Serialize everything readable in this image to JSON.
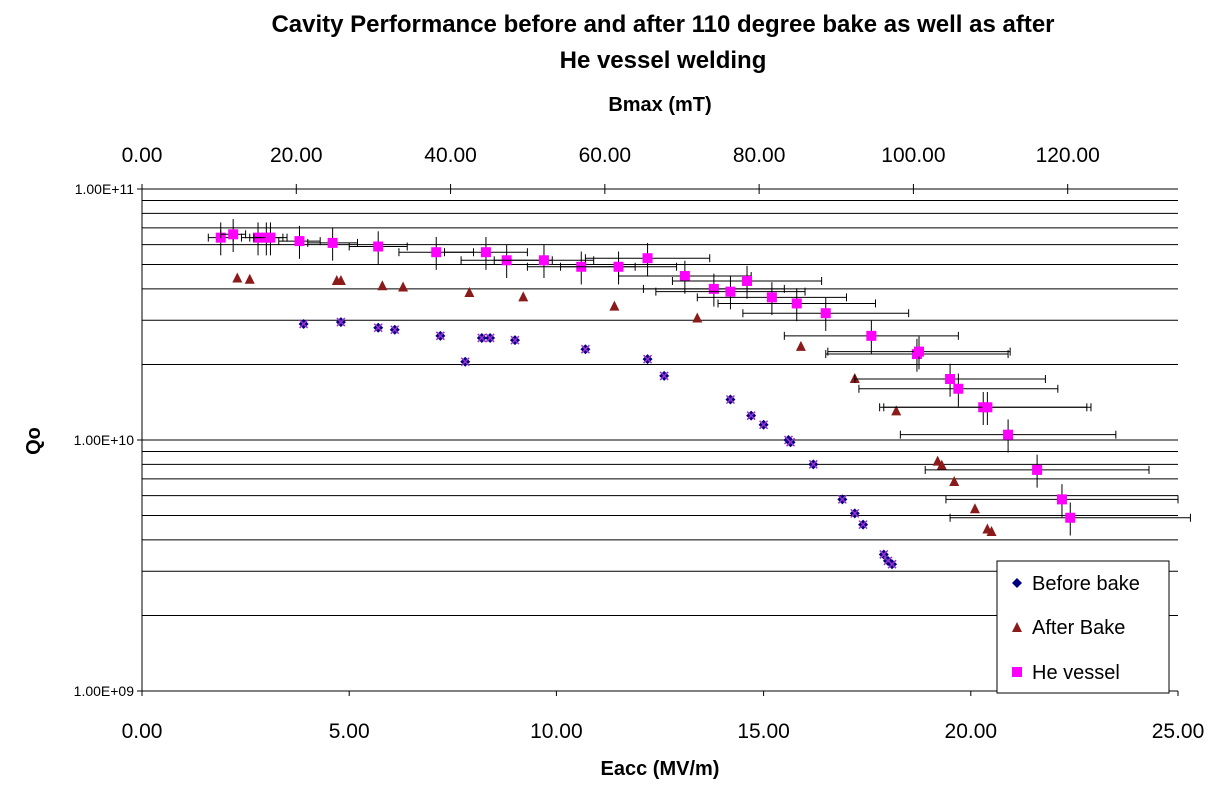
{
  "chart_data": {
    "type": "scatter",
    "title": "Cavity Performance before and after 110 degree bake as well as after He vessel welding",
    "title_lines": [
      "Cavity Performance before and after 110 degree bake as well as after",
      "He vessel welding"
    ],
    "xlabel": "Eacc (MV/m)",
    "x2label": "Bmax (mT)",
    "ylabel": "Qo",
    "xlim": [
      0,
      25
    ],
    "x2lim": [
      0,
      134.3
    ],
    "ylim": [
      1000000000.0,
      100000000000.0
    ],
    "yscale": "log",
    "x_ticks": [
      "0.00",
      "5.00",
      "10.00",
      "15.00",
      "20.00",
      "25.00"
    ],
    "x2_ticks": [
      "0.00",
      "20.00",
      "40.00",
      "60.00",
      "80.00",
      "100.00",
      "120.00"
    ],
    "y_tick_labels": [
      "1.00E+09",
      "1.00E+10",
      "1.00E+11"
    ],
    "grid": "horizontal",
    "legend_position": "bottom-right",
    "series": [
      {
        "name": "Before bake",
        "color": "#000080",
        "marker": "diamond",
        "x": [
          3.9,
          4.8,
          5.7,
          6.1,
          7.2,
          7.8,
          8.2,
          8.4,
          9.0,
          10.7,
          12.2,
          12.6,
          14.2,
          14.7,
          15.0,
          15.6,
          15.65,
          16.2,
          16.9,
          17.2,
          17.4,
          17.9,
          18.0,
          18.1
        ],
        "y": [
          29000000000.0,
          29500000000.0,
          28000000000.0,
          27500000000.0,
          26000000000.0,
          20500000000.0,
          25500000000.0,
          25500000000.0,
          25000000000.0,
          23000000000.0,
          21000000000.0,
          18000000000.0,
          14500000000.0,
          12500000000.0,
          11500000000.0,
          10000000000.0,
          9800000000.0,
          8000000000.0,
          5800000000.0,
          5100000000.0,
          4600000000.0,
          3500000000.0,
          3300000000.0,
          3200000000.0
        ]
      },
      {
        "name": "After Bake",
        "color": "#8B1A1A",
        "marker": "triangle",
        "x": [
          2.3,
          2.6,
          4.7,
          4.8,
          5.8,
          6.3,
          7.9,
          9.2,
          11.4,
          13.4,
          15.9,
          17.2,
          18.2,
          19.2,
          19.3,
          19.6,
          20.1,
          20.4,
          20.5
        ],
        "y": [
          44000000000.0,
          43500000000.0,
          43000000000.0,
          43000000000.0,
          41000000000.0,
          40500000000.0,
          38500000000.0,
          37000000000.0,
          34000000000.0,
          30500000000.0,
          23500000000.0,
          17500000000.0,
          13000000000.0,
          8200000000.0,
          7900000000.0,
          6800000000.0,
          5300000000.0,
          4400000000.0,
          4300000000.0
        ]
      },
      {
        "name": "He vessel",
        "color": "#FF00FF",
        "marker": "square",
        "x": [
          1.9,
          2.2,
          2.8,
          3.0,
          3.1,
          3.8,
          4.6,
          5.7,
          7.1,
          8.3,
          8.8,
          9.7,
          10.6,
          11.5,
          12.2,
          13.1,
          13.8,
          14.2,
          14.6,
          15.2,
          15.8,
          16.5,
          17.6,
          18.7,
          18.75,
          19.5,
          19.7,
          20.3,
          20.4,
          20.9,
          21.6,
          22.2,
          22.4
        ],
        "y": [
          64000000000.0,
          66000000000.0,
          64000000000.0,
          64000000000.0,
          64000000000.0,
          62000000000.0,
          61000000000.0,
          59000000000.0,
          56000000000.0,
          56000000000.0,
          52000000000.0,
          52000000000.0,
          49000000000.0,
          49000000000.0,
          53000000000.0,
          45000000000.0,
          40000000000.0,
          39000000000.0,
          43000000000.0,
          37000000000.0,
          35000000000.0,
          32000000000.0,
          26000000000.0,
          22000000000.0,
          22500000000.0,
          17500000000.0,
          16000000000.0,
          13500000000.0,
          13500000000.0,
          10500000000.0,
          7600000000.0,
          5800000000.0,
          4900000000.0
        ],
        "x_err": [
          0.3,
          0.3,
          0.4,
          0.4,
          0.4,
          0.5,
          0.6,
          0.7,
          0.9,
          1.0,
          1.1,
          1.2,
          1.3,
          1.4,
          1.5,
          1.6,
          1.7,
          1.8,
          1.8,
          1.8,
          1.9,
          2.0,
          2.1,
          2.2,
          2.2,
          2.3,
          2.4,
          2.5,
          2.5,
          2.6,
          2.7,
          2.8,
          2.9
        ],
        "y_err_frac": 0.15
      }
    ]
  },
  "legend": {
    "items": [
      {
        "label": "Before bake",
        "color": "#000080",
        "marker": "diamond"
      },
      {
        "label": "After Bake",
        "color": "#8B1A1A",
        "marker": "triangle"
      },
      {
        "label": "He vessel",
        "color": "#FF00FF",
        "marker": "square"
      }
    ]
  }
}
